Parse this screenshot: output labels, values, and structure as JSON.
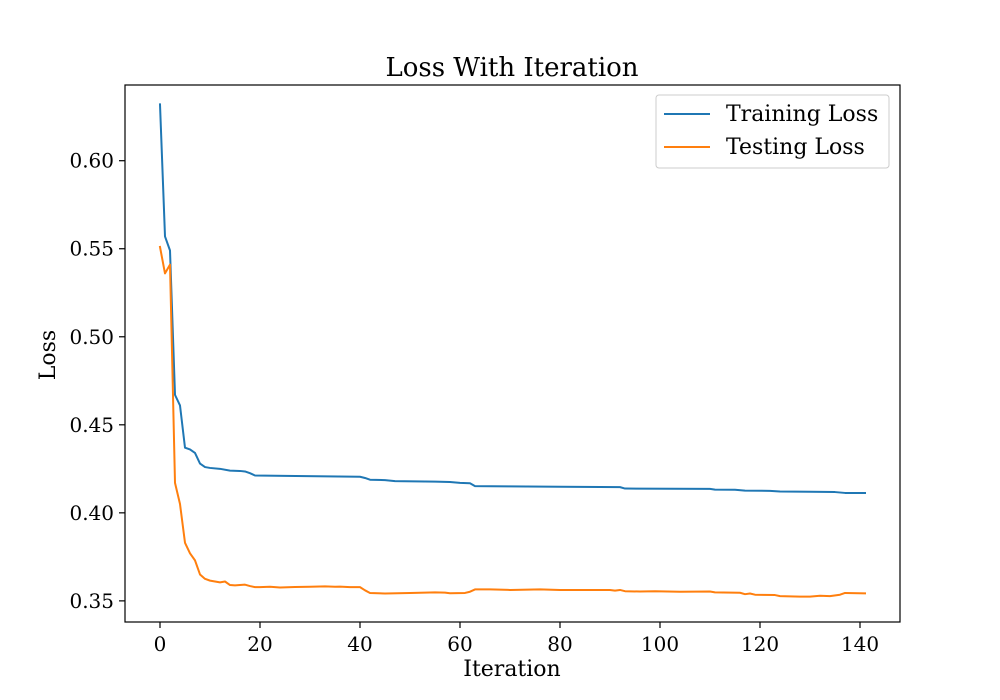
{
  "chart_data": {
    "type": "line",
    "title": "Loss With Iteration",
    "xlabel": "Iteration",
    "ylabel": "Loss",
    "xlim": [
      -7,
      148
    ],
    "ylim": [
      0.338,
      0.643
    ],
    "xticks": [
      0,
      20,
      40,
      60,
      80,
      100,
      120,
      140
    ],
    "xtick_labels": [
      "0",
      "20",
      "40",
      "60",
      "80",
      "100",
      "120",
      "140"
    ],
    "yticks": [
      0.35,
      0.4,
      0.45,
      0.5,
      0.55,
      0.6
    ],
    "ytick_labels": [
      "0.35",
      "0.40",
      "0.45",
      "0.50",
      "0.55",
      "0.60"
    ],
    "grid": false,
    "legend_position": "top-right",
    "series": [
      {
        "name": "Training Loss",
        "color": "#1f77b4",
        "points": [
          [
            0,
            0.632
          ],
          [
            1,
            0.557
          ],
          [
            2,
            0.549
          ],
          [
            3,
            0.467
          ],
          [
            4,
            0.461
          ],
          [
            5,
            0.437
          ],
          [
            6,
            0.436
          ],
          [
            7,
            0.434
          ],
          [
            8,
            0.428
          ],
          [
            9,
            0.426
          ],
          [
            10,
            0.4255
          ],
          [
            12,
            0.425
          ],
          [
            14,
            0.424
          ],
          [
            16,
            0.4238
          ],
          [
            17,
            0.4235
          ],
          [
            18,
            0.4225
          ],
          [
            19,
            0.4212
          ],
          [
            25,
            0.421
          ],
          [
            40,
            0.4205
          ],
          [
            41,
            0.4198
          ],
          [
            42,
            0.4188
          ],
          [
            45,
            0.4186
          ],
          [
            47,
            0.418
          ],
          [
            55,
            0.4177
          ],
          [
            58,
            0.4175
          ],
          [
            60,
            0.417
          ],
          [
            62,
            0.4168
          ],
          [
            63,
            0.4152
          ],
          [
            70,
            0.415
          ],
          [
            80,
            0.4148
          ],
          [
            92,
            0.4146
          ],
          [
            93,
            0.4138
          ],
          [
            110,
            0.4136
          ],
          [
            111,
            0.4132
          ],
          [
            115,
            0.4131
          ],
          [
            117,
            0.4126
          ],
          [
            122,
            0.4125
          ],
          [
            124,
            0.4121
          ],
          [
            130,
            0.412
          ],
          [
            135,
            0.4118
          ],
          [
            137,
            0.4113
          ],
          [
            141,
            0.4113
          ]
        ]
      },
      {
        "name": "Testing Loss",
        "color": "#ff7f0e",
        "points": [
          [
            0,
            0.551
          ],
          [
            1,
            0.536
          ],
          [
            2,
            0.541
          ],
          [
            3,
            0.417
          ],
          [
            4,
            0.405
          ],
          [
            5,
            0.383
          ],
          [
            6,
            0.377
          ],
          [
            7,
            0.373
          ],
          [
            8,
            0.365
          ],
          [
            9,
            0.3625
          ],
          [
            10,
            0.3615
          ],
          [
            11,
            0.361
          ],
          [
            12,
            0.3605
          ],
          [
            13,
            0.361
          ],
          [
            14,
            0.359
          ],
          [
            15,
            0.3588
          ],
          [
            16,
            0.359
          ],
          [
            17,
            0.3592
          ],
          [
            18,
            0.3584
          ],
          [
            19,
            0.3578
          ],
          [
            20,
            0.3578
          ],
          [
            22,
            0.358
          ],
          [
            24,
            0.3576
          ],
          [
            27,
            0.3579
          ],
          [
            30,
            0.358
          ],
          [
            33,
            0.3582
          ],
          [
            35,
            0.358
          ],
          [
            36,
            0.3581
          ],
          [
            38,
            0.3578
          ],
          [
            40,
            0.3578
          ],
          [
            41,
            0.356
          ],
          [
            42,
            0.3545
          ],
          [
            45,
            0.3542
          ],
          [
            50,
            0.3545
          ],
          [
            55,
            0.3548
          ],
          [
            57,
            0.3547
          ],
          [
            58,
            0.3543
          ],
          [
            61,
            0.3545
          ],
          [
            62,
            0.3552
          ],
          [
            63,
            0.3565
          ],
          [
            66,
            0.3565
          ],
          [
            70,
            0.3562
          ],
          [
            76,
            0.3565
          ],
          [
            80,
            0.3562
          ],
          [
            90,
            0.3562
          ],
          [
            91,
            0.3558
          ],
          [
            92,
            0.3562
          ],
          [
            93,
            0.3555
          ],
          [
            96,
            0.3553
          ],
          [
            99,
            0.3555
          ],
          [
            104,
            0.3552
          ],
          [
            110,
            0.3553
          ],
          [
            111,
            0.3548
          ],
          [
            116,
            0.3546
          ],
          [
            117,
            0.3538
          ],
          [
            118,
            0.3542
          ],
          [
            119,
            0.3535
          ],
          [
            123,
            0.3533
          ],
          [
            124,
            0.3527
          ],
          [
            128,
            0.3524
          ],
          [
            130,
            0.3524
          ],
          [
            132,
            0.3529
          ],
          [
            134,
            0.3527
          ],
          [
            136,
            0.3535
          ],
          [
            137,
            0.3545
          ],
          [
            141,
            0.3543
          ]
        ]
      }
    ]
  }
}
